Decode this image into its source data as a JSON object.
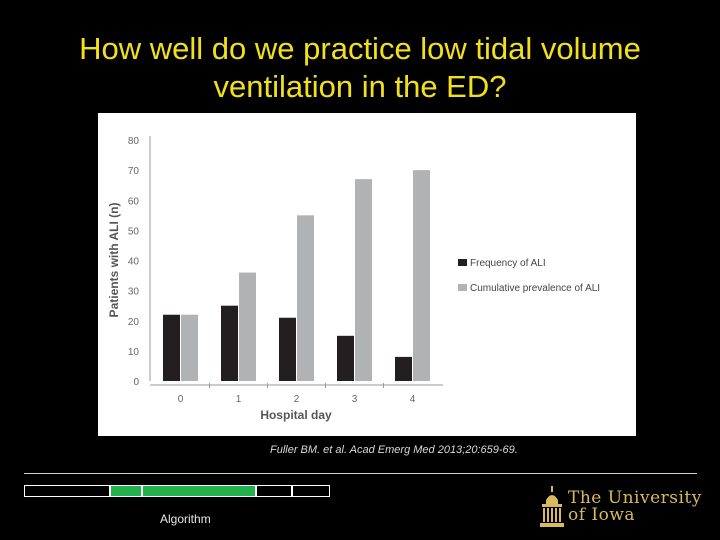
{
  "slide": {
    "title_line1": "How well do we practice low tidal volume",
    "title_line2": "ventilation in the ED?",
    "citation": "Fuller BM. et al. Acad Emerg Med 2013;20:659-69.",
    "nav_label": "Algorithm",
    "progress_segments": [
      {
        "active": false
      },
      {
        "active": true
      },
      {
        "active": true
      },
      {
        "active": false
      },
      {
        "active": false
      }
    ],
    "logo": {
      "line1": "The University",
      "line2": "of Iowa"
    },
    "colors": {
      "title": "#f2e11a",
      "accent_gold": "#d7bb5e",
      "progress_active": "#22b14c"
    }
  },
  "chart_data": {
    "type": "bar",
    "title": "",
    "xlabel": "Hospital day",
    "ylabel": "Patients with ALI (n)",
    "categories": [
      "0",
      "1",
      "2",
      "3",
      "4"
    ],
    "ylim": [
      0,
      80
    ],
    "yticks": [
      "0",
      "10",
      "20",
      "30",
      "40",
      "50",
      "60",
      "70",
      "80"
    ],
    "grid": false,
    "legend_position": "right",
    "series": [
      {
        "name": "Frequency of ALI",
        "color": "#231f20",
        "values": [
          22,
          25,
          21,
          15,
          8
        ]
      },
      {
        "name": "Cumulative prevalence of ALI",
        "color": "#b1b2b4",
        "values": [
          22,
          36,
          55,
          67,
          70
        ]
      }
    ]
  }
}
